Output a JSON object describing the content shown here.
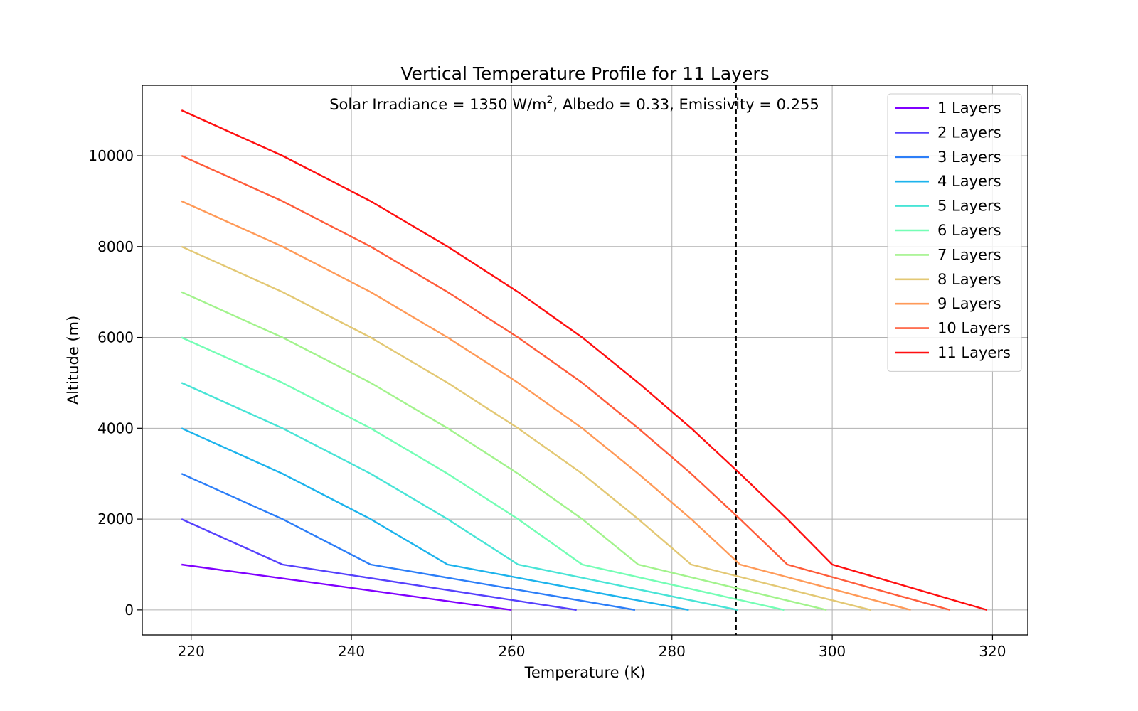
{
  "chart_data": {
    "type": "line",
    "title": "Vertical Temperature Profile for 11 Layers",
    "annotation": {
      "prefix": "Solar Irradiance = 1350 W/m",
      "superscript": "2",
      "suffix": ", Albedo = 0.33, Emissivity = 0.255"
    },
    "xlabel": "Temperature (K)",
    "ylabel": "Altitude (m)",
    "xlim": [
      213.9,
      324.4
    ],
    "ylim": [
      -550,
      11550
    ],
    "xticks": [
      220,
      240,
      260,
      280,
      300,
      320
    ],
    "yticks": [
      0,
      2000,
      4000,
      6000,
      8000,
      10000
    ],
    "xtick_labels": [
      "220",
      "240",
      "260",
      "280",
      "300",
      "320"
    ],
    "ytick_labels": [
      "0",
      "2000",
      "4000",
      "6000",
      "8000",
      "10000"
    ],
    "grid": true,
    "legend_position": "top-right",
    "reference_line": {
      "x": 288,
      "style": "dashed",
      "color": "#000000"
    },
    "series": [
      {
        "name": "1 Layers",
        "color": "#8000ff",
        "x": [
          260.0,
          218.8
        ],
        "y": [
          0,
          1000
        ]
      },
      {
        "name": "2 Layers",
        "color": "#5641fd",
        "x": [
          268.1,
          231.4,
          218.8
        ],
        "y": [
          0,
          1000,
          2000
        ]
      },
      {
        "name": "3 Layers",
        "color": "#2c7ef8",
        "x": [
          275.4,
          242.4,
          231.4,
          218.8
        ],
        "y": [
          0,
          1000,
          2000,
          3000
        ]
      },
      {
        "name": "4 Layers",
        "color": "#1cb3ec",
        "x": [
          282.1,
          252.0,
          242.4,
          231.4,
          218.8
        ],
        "y": [
          0,
          1000,
          2000,
          3000,
          4000
        ]
      },
      {
        "name": "5 Layers",
        "color": "#48e4d6",
        "x": [
          288.2,
          260.8,
          252.0,
          242.4,
          231.4,
          218.8
        ],
        "y": [
          0,
          1000,
          2000,
          3000,
          4000,
          5000
        ]
      },
      {
        "name": "6 Layers",
        "color": "#74feb5",
        "x": [
          294.0,
          268.8,
          260.8,
          252.0,
          242.4,
          231.4,
          218.8
        ],
        "y": [
          0,
          1000,
          2000,
          3000,
          4000,
          5000,
          6000
        ]
      },
      {
        "name": "7 Layers",
        "color": "#a2f38c",
        "x": [
          299.3,
          275.8,
          268.8,
          260.8,
          252.0,
          242.4,
          231.4,
          218.8
        ],
        "y": [
          0,
          1000,
          2000,
          3000,
          4000,
          5000,
          6000,
          7000
        ]
      },
      {
        "name": "8 Layers",
        "color": "#e3c874",
        "x": [
          304.8,
          282.4,
          275.8,
          268.8,
          260.8,
          252.0,
          242.4,
          231.4,
          218.8
        ],
        "y": [
          0,
          1000,
          2000,
          3000,
          4000,
          5000,
          6000,
          7000,
          8000
        ]
      },
      {
        "name": "9 Layers",
        "color": "#ff9a58",
        "x": [
          309.8,
          288.5,
          282.4,
          275.8,
          268.8,
          260.8,
          252.0,
          242.4,
          231.4,
          218.8
        ],
        "y": [
          0,
          1000,
          2000,
          3000,
          4000,
          5000,
          6000,
          7000,
          8000,
          9000
        ]
      },
      {
        "name": "10 Layers",
        "color": "#ff5c3a",
        "x": [
          314.7,
          294.4,
          288.5,
          282.4,
          275.8,
          268.8,
          260.8,
          252.0,
          242.4,
          231.4,
          218.8
        ],
        "y": [
          0,
          1000,
          2000,
          3000,
          4000,
          5000,
          6000,
          7000,
          8000,
          9000,
          10000
        ]
      },
      {
        "name": "11 Layers",
        "color": "#ff0f10",
        "x": [
          319.3,
          300.0,
          294.4,
          288.5,
          282.4,
          275.8,
          268.8,
          260.8,
          252.0,
          242.4,
          231.4,
          218.8
        ],
        "y": [
          0,
          1000,
          2000,
          3000,
          4000,
          5000,
          6000,
          7000,
          8000,
          9000,
          10000,
          11000
        ]
      }
    ]
  }
}
